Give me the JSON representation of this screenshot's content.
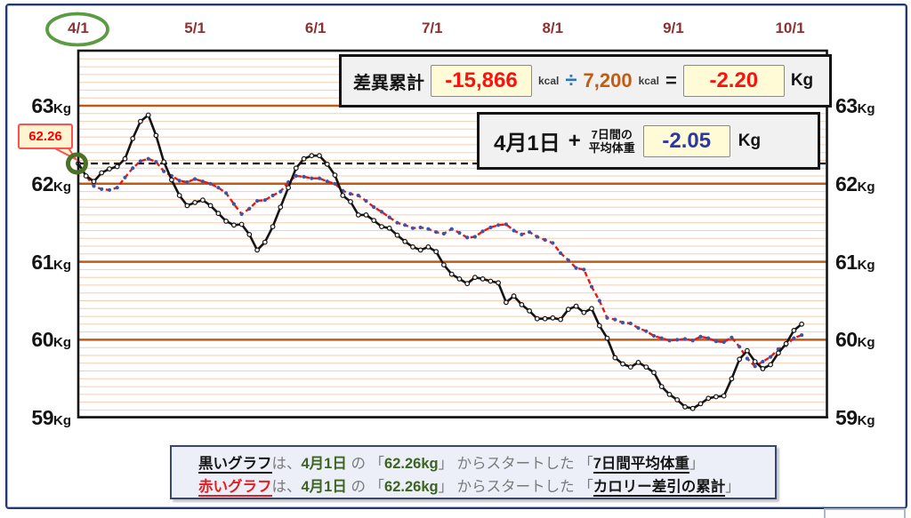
{
  "colors": {
    "outer_border": "#26356b",
    "major_grid": "#c05a10",
    "minor_grid": "#f6cdb2",
    "black_series": "#141414",
    "red_series": "#ee1414",
    "blue_dot": "#3a56a8",
    "date_label": "#8d3130",
    "annotation_green": "#4a7227",
    "ellipse_green": "#5b9b42",
    "callout_border": "#ff5050",
    "callout_bg": "#fdf4d2",
    "value_red": "#fe1010",
    "value_orange": "#c55a11",
    "value_blue": "#2b36ad",
    "divide_blue": "#2e75b6",
    "legend_bg": "#eceff8",
    "legend_border": "#35486e"
  },
  "annotation": {
    "start_label": "62.26"
  },
  "formula_box": {
    "label": "差異累計",
    "value1": "-15,866",
    "unit1": "kcal",
    "op": "÷",
    "value2": "7,200",
    "unit2": "kcal",
    "eq": "=",
    "result": "-2.20",
    "result_unit": "Kg"
  },
  "average_box": {
    "date": "4月1日",
    "plus": "+",
    "caption_line1": "7日間の",
    "caption_line2": "平均体重",
    "value": "-2.05",
    "unit": "Kg"
  },
  "legend": {
    "line1": [
      {
        "text": "黒いグラフ",
        "style": "black-underline"
      },
      {
        "text": "は、",
        "style": "gray"
      },
      {
        "text": "4月1日",
        "style": "green"
      },
      {
        "text": " の ",
        "style": "gray"
      },
      {
        "text": "「",
        "style": "gray"
      },
      {
        "text": "62.26kg",
        "style": "green"
      },
      {
        "text": "」",
        "style": "gray"
      },
      {
        "text": " からスタートした ",
        "style": "gray"
      },
      {
        "text": "「",
        "style": "gray"
      },
      {
        "text": "7日間平均体重",
        "style": "black-underline"
      },
      {
        "text": "」",
        "style": "gray"
      }
    ],
    "line2": [
      {
        "text": "赤いグラフ",
        "style": "red-underline"
      },
      {
        "text": "は、",
        "style": "gray"
      },
      {
        "text": "4月1日",
        "style": "green"
      },
      {
        "text": " の ",
        "style": "gray"
      },
      {
        "text": "「",
        "style": "gray"
      },
      {
        "text": "62.26kg",
        "style": "green"
      },
      {
        "text": "」",
        "style": "gray"
      },
      {
        "text": " からスタートした ",
        "style": "gray"
      },
      {
        "text": "「",
        "style": "gray"
      },
      {
        "text": "カロリー差引の累計",
        "style": "black-underline"
      },
      {
        "text": "」",
        "style": "gray"
      }
    ]
  },
  "chart_data": {
    "type": "line",
    "title": "",
    "ylabel": "Kg",
    "ylim": [
      59,
      63.7
    ],
    "y_ticks": [
      63,
      62,
      61,
      60,
      59
    ],
    "y_unit": "Kg",
    "grid": {
      "major_every_kg": 1,
      "minor_every_kg": 0.1
    },
    "x_ticks": [
      {
        "label": "4/1",
        "day": 0,
        "circled": true
      },
      {
        "label": "5/1",
        "day": 30,
        "circled": false
      },
      {
        "label": "6/1",
        "day": 61,
        "circled": false
      },
      {
        "label": "7/1",
        "day": 91,
        "circled": false
      },
      {
        "label": "8/1",
        "day": 122,
        "circled": false
      },
      {
        "label": "9/1",
        "day": 153,
        "circled": false
      },
      {
        "label": "10/1",
        "day": 183,
        "circled": false
      }
    ],
    "baseline_value": 62.26,
    "start_annotation": {
      "day": 0,
      "value": 62.26,
      "label": "62.26"
    },
    "x_sampling": {
      "start_day": 0,
      "step_days": 2,
      "note": "day 0 = 4/1, values estimated every 2 days"
    },
    "series": [
      {
        "name": "7日間平均体重",
        "color": "#141414",
        "marker": "open-circle",
        "line_style": "solid",
        "values": [
          62.26,
          62.1,
          62.03,
          62.14,
          62.19,
          62.22,
          62.32,
          62.58,
          62.8,
          62.88,
          62.62,
          62.28,
          62.05,
          61.85,
          61.72,
          61.76,
          61.79,
          61.72,
          61.62,
          61.52,
          61.47,
          61.48,
          61.35,
          61.15,
          61.25,
          61.45,
          61.7,
          61.95,
          62.2,
          62.32,
          62.36,
          62.36,
          62.25,
          62.11,
          61.85,
          61.77,
          61.6,
          61.6,
          61.53,
          61.45,
          61.43,
          61.34,
          61.26,
          61.19,
          61.15,
          61.19,
          61.13,
          60.96,
          60.84,
          60.78,
          60.72,
          60.8,
          60.78,
          60.75,
          60.73,
          60.48,
          60.56,
          60.45,
          60.37,
          60.27,
          60.27,
          60.28,
          60.26,
          60.39,
          60.43,
          60.35,
          60.4,
          60.18,
          60.02,
          59.77,
          59.69,
          59.65,
          59.71,
          59.65,
          59.58,
          59.4,
          59.3,
          59.23,
          59.14,
          59.12,
          59.18,
          59.25,
          59.27,
          59.28,
          59.5,
          59.75,
          59.86,
          59.72,
          59.63,
          59.68,
          59.83,
          59.95,
          60.12,
          60.2
        ]
      },
      {
        "name": "カロリー差引の累計",
        "color": "#ee1414",
        "marker": "blue-dot",
        "line_style": "dashed",
        "values": [
          62.26,
          62.1,
          61.97,
          61.93,
          61.92,
          61.95,
          62.08,
          62.2,
          62.29,
          62.32,
          62.28,
          62.16,
          62.1,
          62.04,
          62.02,
          62.06,
          62.03,
          62.0,
          61.95,
          61.88,
          61.74,
          61.61,
          61.68,
          61.78,
          61.79,
          61.85,
          61.9,
          62.02,
          62.1,
          62.09,
          62.07,
          62.07,
          62.03,
          62.0,
          61.91,
          61.87,
          61.85,
          61.78,
          61.7,
          61.64,
          61.57,
          61.5,
          61.47,
          61.43,
          61.44,
          61.42,
          61.38,
          61.36,
          61.42,
          61.37,
          61.31,
          61.32,
          61.39,
          61.44,
          61.47,
          61.48,
          61.4,
          61.35,
          61.38,
          61.32,
          61.28,
          61.24,
          61.11,
          61.02,
          60.92,
          60.9,
          60.68,
          60.5,
          60.28,
          60.26,
          60.22,
          60.21,
          60.15,
          60.11,
          60.05,
          60.02,
          59.99,
          60.0,
          60.01,
          59.99,
          60.04,
          60.02,
          59.98,
          59.97,
          60.03,
          59.91,
          59.76,
          59.66,
          59.72,
          59.78,
          59.88,
          59.93,
          60.02,
          60.06
        ]
      }
    ]
  }
}
